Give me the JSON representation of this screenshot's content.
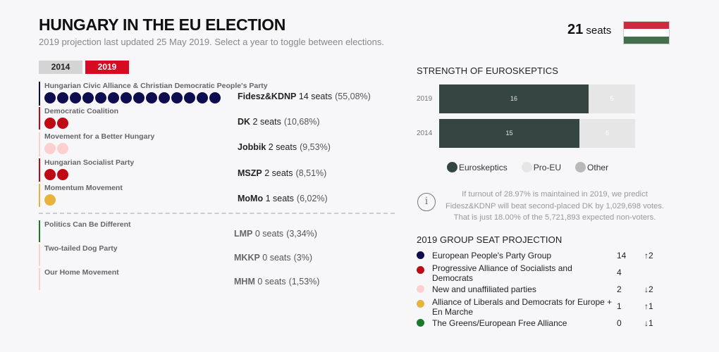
{
  "header": {
    "title": "HUNGARY IN THE EU ELECTION",
    "subtitle": "2019 projection last updated 25 May 2019. Select a year to toggle between elections.",
    "total_seats_num": "21",
    "total_seats_label": "seats",
    "flag_colors": [
      "#cd2a3e",
      "#ffffff",
      "#436f4d"
    ]
  },
  "tabs": [
    {
      "label": "2014",
      "active": false
    },
    {
      "label": "2019",
      "active": true
    }
  ],
  "parties": [
    {
      "name": "Hungarian Civic Alliance & Christian Democratic People's Party",
      "abbr": "Fidesz&KDNP",
      "seats_text": "14 seats",
      "pct": "(55,08%)",
      "seats": 14,
      "color": "#0d0d4f"
    },
    {
      "name": "Democratic Coalition",
      "abbr": "DK",
      "seats_text": "2 seats",
      "pct": "(10,68%)",
      "seats": 2,
      "color": "#bf0a15"
    },
    {
      "name": "Movement for a Better Hungary",
      "abbr": "Jobbik",
      "seats_text": "2 seats",
      "pct": "(9,53%)",
      "seats": 2,
      "color": "#fdd0d0"
    },
    {
      "name": "Hungarian Socialist Party",
      "abbr": "MSZP",
      "seats_text": "2 seats",
      "pct": "(8,51%)",
      "seats": 2,
      "color": "#bf0a15"
    },
    {
      "name": "Momentum Movement",
      "abbr": "MoMo",
      "seats_text": "1 seats",
      "pct": "(6,02%)",
      "seats": 1,
      "color": "#e8b23c"
    },
    {
      "name": "Politics Can Be Different",
      "abbr": "LMP",
      "seats_text": "0 seats",
      "pct": "(3,34%)",
      "seats": 0,
      "color": "#1a7a2a"
    },
    {
      "name": "Two-tailed Dog Party",
      "abbr": "MKKP",
      "seats_text": "0 seats",
      "pct": "(3%)",
      "seats": 0,
      "color": "#fdd0d0"
    },
    {
      "name": "Our Home Movement",
      "abbr": "MHM",
      "seats_text": "0 seats",
      "pct": "(1,53%)",
      "seats": 0,
      "color": "#fdd0d0"
    }
  ],
  "euroskeptics": {
    "title": "STRENGTH OF EUROSKEPTICS",
    "rows": [
      {
        "year": "2019",
        "euro": 16,
        "pro": 5
      },
      {
        "year": "2014",
        "euro": 15,
        "pro": 6
      }
    ],
    "legend": [
      {
        "label": "Euroskeptics",
        "color": "#354542"
      },
      {
        "label": "Pro-EU",
        "color": "#e6e6e6"
      },
      {
        "label": "Other",
        "color": "#b9b9b9"
      }
    ]
  },
  "chart_data": {
    "type": "bar",
    "title": "STRENGTH OF EUROSKEPTICS",
    "categories": [
      "2019",
      "2014"
    ],
    "series": [
      {
        "name": "Euroskeptics",
        "values": [
          16,
          15
        ]
      },
      {
        "name": "Pro-EU",
        "values": [
          5,
          6
        ]
      },
      {
        "name": "Other",
        "values": [
          0,
          0
        ]
      }
    ],
    "stacked": true,
    "orientation": "horizontal",
    "legend_position": "bottom"
  },
  "info": {
    "icon": "info-icon",
    "glyph": "i",
    "text": "If turnout of 28.97% is maintained in 2019, we predict Fidesz&KDNP will beat second-placed DK by 1,029,698 votes. That is just 18.00% of the 5,721,893 expected non-voters."
  },
  "groups": {
    "title": "2019 GROUP SEAT PROJECTION",
    "items": [
      {
        "name": "European People's Party Group",
        "seats": "14",
        "change": "↑2",
        "color": "#0d0d4f"
      },
      {
        "name": "Progressive Alliance of Socialists and Democrats",
        "seats": "4",
        "change": "",
        "color": "#bf0a15"
      },
      {
        "name": "New and unaffiliated parties",
        "seats": "2",
        "change": "↓2",
        "color": "#fdd0d0"
      },
      {
        "name": "Alliance of Liberals and Democrats for Europe + En Marche",
        "seats": "1",
        "change": "↑1",
        "color": "#e8b23c"
      },
      {
        "name": "The Greens/European Free Alliance",
        "seats": "0",
        "change": "↓1",
        "color": "#1a7a2a"
      }
    ]
  }
}
